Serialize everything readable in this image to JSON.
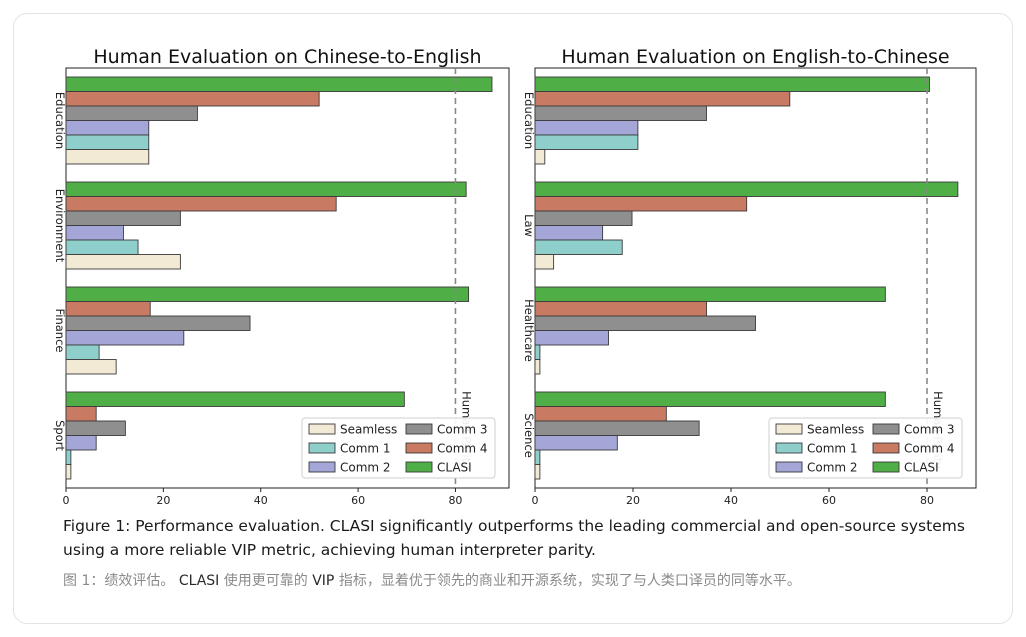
{
  "chart_data": [
    {
      "type": "bar",
      "orientation": "horizontal",
      "title": "Human Evaluation on Chinese-to-English",
      "categories": [
        "Education",
        "Environment",
        "Finance",
        "Sport"
      ],
      "series": [
        {
          "name": "Seamless",
          "values": [
            17,
            23.5,
            10.3,
            1.0
          ]
        },
        {
          "name": "Comm 1",
          "values": [
            17,
            14.8,
            6.8,
            1.0
          ]
        },
        {
          "name": "Comm 2",
          "values": [
            17,
            11.8,
            24.2,
            6.2
          ]
        },
        {
          "name": "Comm 3",
          "values": [
            27,
            23.5,
            37.8,
            12.2
          ]
        },
        {
          "name": "Comm 4",
          "values": [
            52,
            55.5,
            17.3,
            6.2
          ]
        },
        {
          "name": "CLASI",
          "values": [
            87.5,
            82.2,
            82.7,
            69.5
          ]
        }
      ],
      "xlim": [
        0,
        91
      ],
      "xticks": [
        0,
        20,
        40,
        60,
        80
      ],
      "reference_line": {
        "x": 80,
        "label": "Human Parity"
      },
      "legend": "lower-right",
      "grid": false
    },
    {
      "type": "bar",
      "orientation": "horizontal",
      "title": "Human Evaluation on English-to-Chinese",
      "categories": [
        "Education",
        "Law",
        "Healthcare",
        "Science"
      ],
      "series": [
        {
          "name": "Seamless",
          "values": [
            2.0,
            3.8,
            1.0,
            1.0
          ]
        },
        {
          "name": "Comm 1",
          "values": [
            21,
            17.8,
            1.0,
            1.0
          ]
        },
        {
          "name": "Comm 2",
          "values": [
            21,
            13.8,
            15,
            16.8
          ]
        },
        {
          "name": "Comm 3",
          "values": [
            35,
            19.8,
            45,
            33.5
          ]
        },
        {
          "name": "Comm 4",
          "values": [
            52,
            43.2,
            35,
            26.8
          ]
        },
        {
          "name": "CLASI",
          "values": [
            80.5,
            86.3,
            71.5,
            71.5
          ]
        }
      ],
      "xlim": [
        0,
        90
      ],
      "xticks": [
        0,
        20,
        40,
        60,
        80
      ],
      "reference_line": {
        "x": 80,
        "label": "Human Parity"
      },
      "legend": "lower-right",
      "grid": false
    }
  ],
  "colors": {
    "Seamless": "#f2ead5",
    "Comm 1": "#8fcfcb",
    "Comm 2": "#a3a6d6",
    "Comm 3": "#8f8f8f",
    "Comm 4": "#c97a63",
    "CLASI": "#4faf46"
  },
  "legend_order": [
    "Seamless",
    "Comm 3",
    "Comm 1",
    "Comm 4",
    "Comm 2",
    "CLASI"
  ],
  "caption": {
    "en": "Figure 1: Performance evaluation. CLASI significantly outperforms the leading commercial and open-source systems using a more reliable VIP metric, achieving human interpreter parity.",
    "zh_prefix": "图 1：绩效评估。",
    "zh_clasi": "CLASI",
    "zh_mid": "使用更可靠的",
    "zh_vip": "VIP",
    "zh_suffix": "指标，显着优于领先的商业和开源系统，实现了与人类口译员的同等水平。"
  }
}
